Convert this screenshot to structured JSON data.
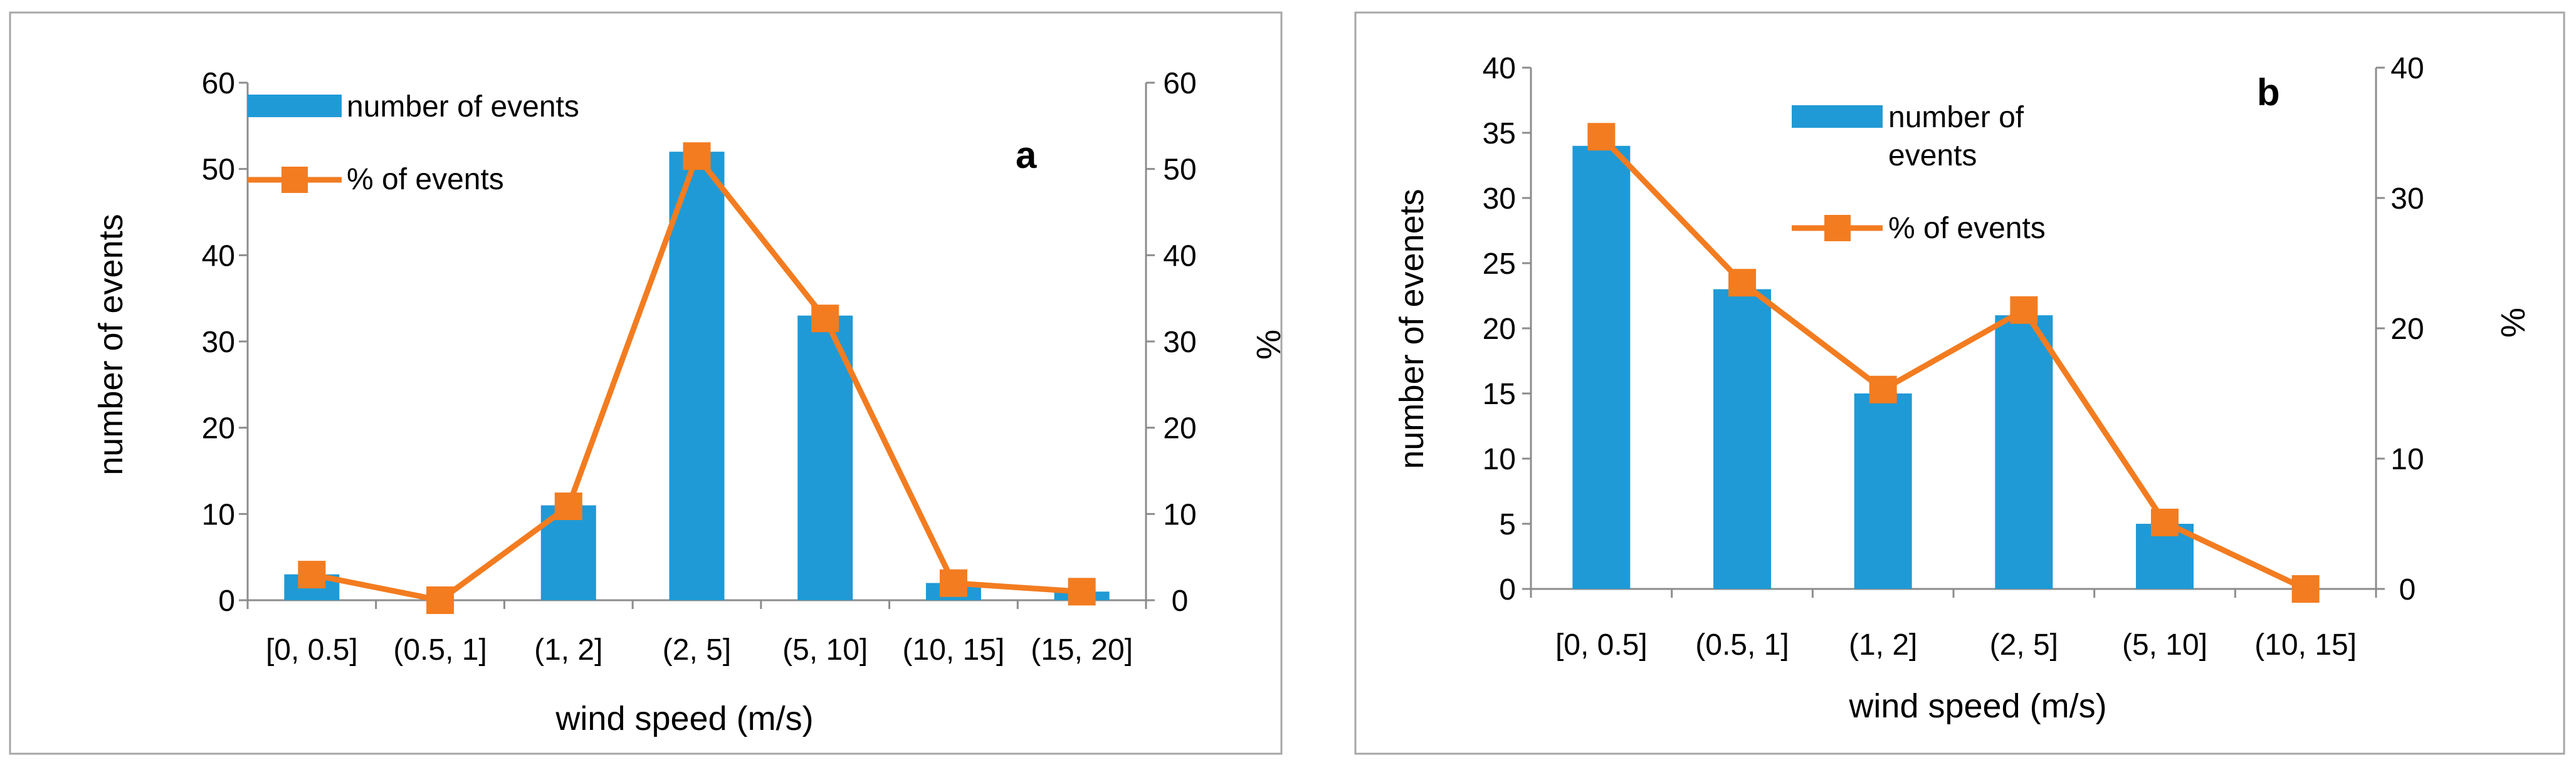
{
  "chart_data": [
    {
      "type": "bar",
      "panel_label": "a",
      "categories": [
        "[0, 0.5]",
        "(0.5, 1]",
        "(1, 2]",
        "(2, 5]",
        "(5, 10]",
        "(10, 15]",
        "(15, 20]"
      ],
      "series": [
        {
          "name": "number of events",
          "type": "bar",
          "axis": "left",
          "color": "#1f9ad6",
          "values": [
            3,
            0,
            11,
            52,
            33,
            2,
            1
          ]
        },
        {
          "name": "% of events",
          "type": "line",
          "axis": "right",
          "color": "#f37c20",
          "values": [
            2.97,
            0,
            10.89,
            51.49,
            32.67,
            1.98,
            0.99
          ]
        }
      ],
      "xlabel": "wind speed (m/s)",
      "ylabel": "number of events",
      "y2label": "%",
      "ylim": [
        0,
        60
      ],
      "y2lim": [
        0,
        60
      ],
      "yticks": [
        "0",
        "10",
        "20",
        "30",
        "40",
        "50",
        "60"
      ],
      "y2ticks": [
        "0",
        "10",
        "20",
        "30",
        "40",
        "50",
        "60"
      ],
      "legend_position": "top-left"
    },
    {
      "type": "bar",
      "panel_label": "b",
      "categories": [
        "[0, 0.5]",
        "(0.5, 1]",
        "(1, 2]",
        "(2, 5]",
        "(5, 10]",
        "(10, 15]"
      ],
      "series": [
        {
          "name": "number of events",
          "type": "bar",
          "axis": "left",
          "color": "#1f9ad6",
          "values": [
            34,
            23,
            15,
            21,
            5,
            0
          ]
        },
        {
          "name": "% of events",
          "type": "line",
          "axis": "right",
          "color": "#f37c20",
          "values": [
            34.7,
            23.5,
            15.3,
            21.4,
            5.1,
            0
          ]
        }
      ],
      "xlabel": "wind speed (m/s)",
      "ylabel": "number of evenets",
      "y2label": "%",
      "ylim": [
        0,
        40
      ],
      "y2lim": [
        0,
        40
      ],
      "yticks": [
        "0",
        "5",
        "10",
        "15",
        "20",
        "25",
        "30",
        "35",
        "40"
      ],
      "y2ticks": [
        "0",
        "10",
        "20",
        "30",
        "40"
      ],
      "legend_position": "top-center",
      "legend_bar_label_lines": [
        "number of",
        "events"
      ]
    }
  ]
}
